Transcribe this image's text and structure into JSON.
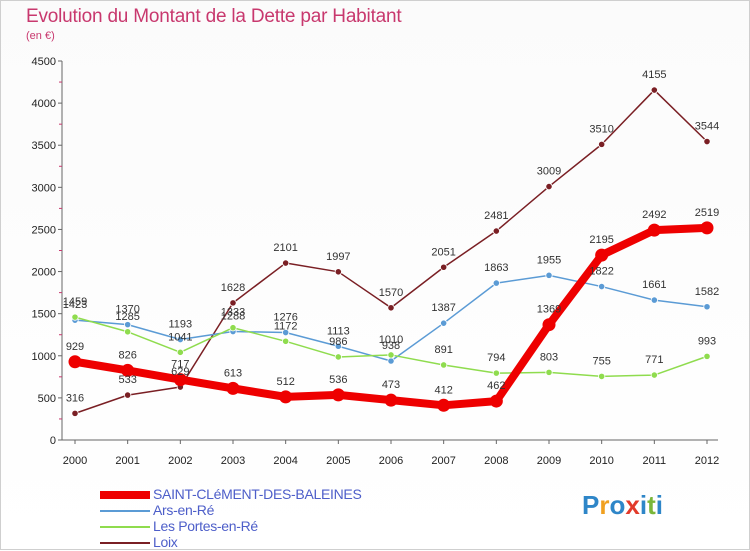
{
  "title": "Evolution du Montant de la Dette par Habitant",
  "subtitle": "(en €)",
  "logo": {
    "text": "Proxiti",
    "colors": [
      "#2e86c8",
      "#f0a020",
      "#2e86c8",
      "#e23a2a",
      "#2e86c8",
      "#7ab63a",
      "#2e86c8"
    ]
  },
  "chart_data": {
    "type": "line",
    "x": [
      2000,
      2001,
      2002,
      2003,
      2004,
      2005,
      2006,
      2007,
      2008,
      2009,
      2010,
      2011,
      2012
    ],
    "ylim": [
      0,
      4500
    ],
    "yticks": [
      0,
      500,
      1000,
      1500,
      2000,
      2500,
      3000,
      3500,
      4000,
      4500
    ],
    "grid": false,
    "legend": "bottom-left",
    "series": [
      {
        "name": "SAINT-CLéMENT-DES-BALEINES",
        "color": "#ee0000",
        "width": 8,
        "values": [
          929,
          826,
          717,
          613,
          512,
          536,
          473,
          412,
          462,
          1369,
          2195,
          2492,
          2519
        ],
        "labels": [
          "929",
          "826",
          "717",
          "613",
          "512",
          "536",
          "473",
          "412",
          "462",
          "1369",
          "2195",
          "2492",
          "2519"
        ]
      },
      {
        "name": "Ars-en-Ré",
        "color": "#5b9bd5",
        "width": 1.5,
        "values": [
          1423,
          1370,
          1193,
          1288,
          1276,
          1113,
          938,
          1387,
          1863,
          1955,
          1822,
          1661,
          1582
        ],
        "labels": [
          "1423",
          "1370",
          "1193",
          "1288",
          "1276",
          "1113",
          "938",
          "1387",
          "1863",
          "1955",
          "1822",
          "1661",
          "1582"
        ]
      },
      {
        "name": "Les Portes-en-Ré",
        "color": "#8fdc4e",
        "width": 1.5,
        "values": [
          1459,
          1285,
          1041,
          1333,
          1172,
          986,
          1010,
          891,
          794,
          803,
          755,
          771,
          993
        ],
        "labels": [
          "1459",
          "1285",
          "1041",
          "1333",
          "1172",
          "986",
          "1010",
          "891",
          "794",
          "803",
          "755",
          "771",
          "993"
        ]
      },
      {
        "name": "Loix",
        "color": "#7a1f24",
        "width": 1.5,
        "values": [
          316,
          533,
          629,
          1628,
          2101,
          1997,
          1570,
          2051,
          2481,
          3009,
          3510,
          4155,
          3544
        ],
        "labels": [
          "316",
          "533",
          "629",
          "1628",
          "2101",
          "1997",
          "1570",
          "2051",
          "2481",
          "3009",
          "3510",
          "4155",
          "3544"
        ]
      }
    ]
  }
}
